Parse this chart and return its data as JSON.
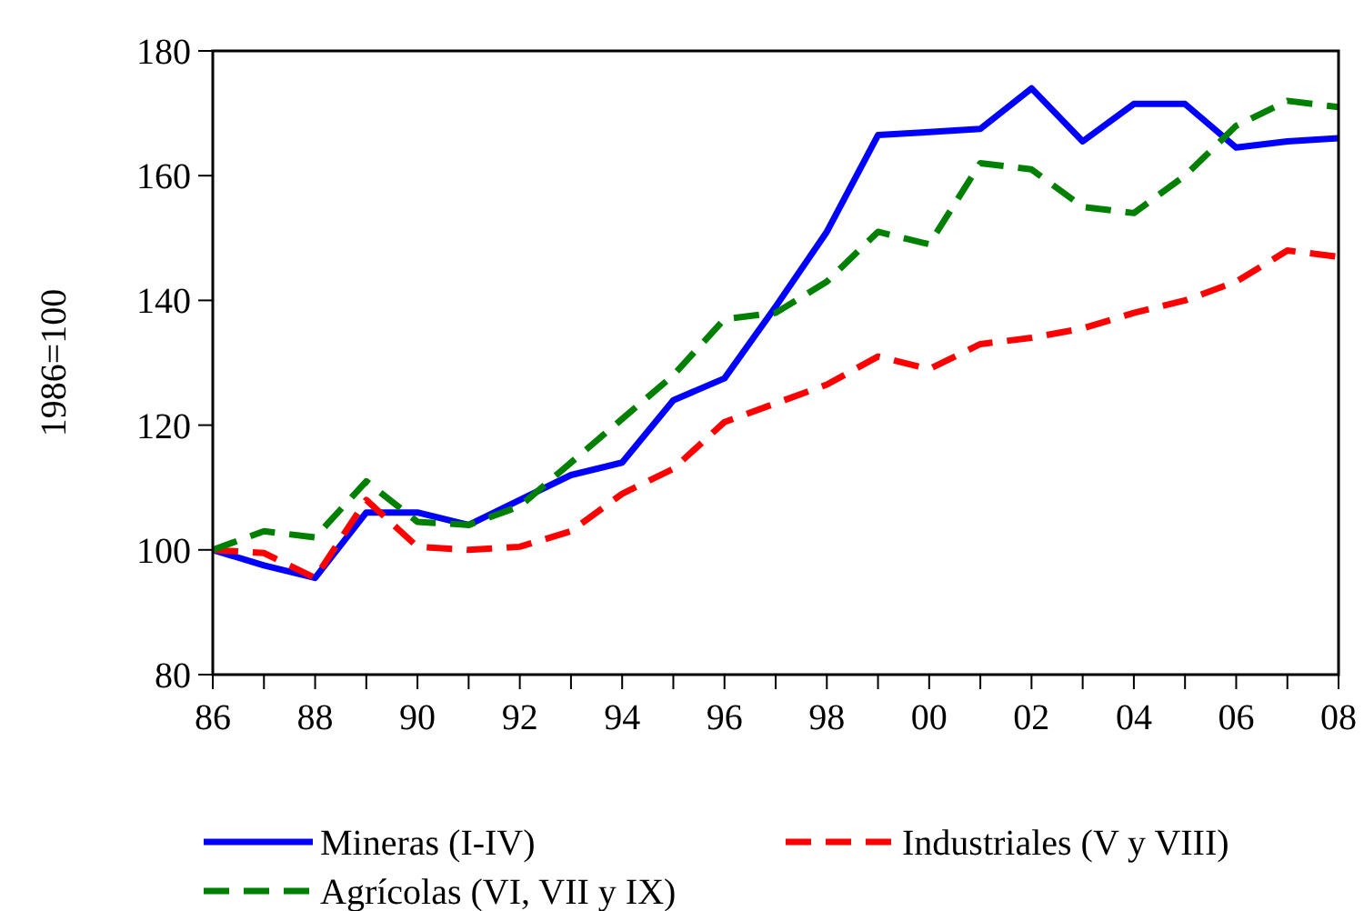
{
  "chart_data": {
    "type": "line",
    "ylabel": "1986=100",
    "x": [
      1986,
      1987,
      1988,
      1989,
      1990,
      1991,
      1992,
      1993,
      1994,
      1995,
      1996,
      1997,
      1998,
      1999,
      2000,
      2001,
      2002,
      2003,
      2004,
      2005,
      2006,
      2007,
      2008
    ],
    "xlim": [
      1986,
      2008
    ],
    "xticks": [
      {
        "value": 1986,
        "label": "86"
      },
      {
        "value": 1988,
        "label": "88"
      },
      {
        "value": 1990,
        "label": "90"
      },
      {
        "value": 1992,
        "label": "92"
      },
      {
        "value": 1994,
        "label": "94"
      },
      {
        "value": 1996,
        "label": "96"
      },
      {
        "value": 1998,
        "label": "98"
      },
      {
        "value": 2000,
        "label": "00"
      },
      {
        "value": 2002,
        "label": "02"
      },
      {
        "value": 2004,
        "label": "04"
      },
      {
        "value": 2006,
        "label": "06"
      },
      {
        "value": 2008,
        "label": "08"
      }
    ],
    "ylim": [
      80,
      180
    ],
    "yticks": [
      80,
      100,
      120,
      140,
      160,
      180
    ],
    "grid": false,
    "legend": "bottom",
    "series": [
      {
        "name": "Mineras (I-IV)",
        "color": "#0000ff",
        "line_style": "solid",
        "values": [
          100,
          97.5,
          95.5,
          106,
          106,
          104,
          108,
          112,
          114,
          124,
          127.5,
          139,
          151,
          166.5,
          167,
          167.5,
          174,
          165.5,
          171.5,
          171.5,
          164.5,
          165.5,
          166
        ]
      },
      {
        "name": "Industriales (V y VIII)",
        "color": "#ff0000",
        "line_style": "dashed",
        "values": [
          100,
          99.5,
          95.5,
          108,
          100.5,
          100,
          100.5,
          103,
          109,
          113,
          120.5,
          123.5,
          126.5,
          131,
          129,
          133,
          134,
          135.5,
          138,
          140,
          143,
          148,
          147
        ]
      },
      {
        "name": "Agrícolas (VI, VII y IX)",
        "color": "#008000",
        "line_style": "dashed",
        "values": [
          100,
          103,
          102,
          111,
          104.5,
          104,
          107,
          114,
          121,
          128,
          137,
          138,
          143,
          151,
          149,
          162,
          161,
          155,
          154,
          160,
          168,
          172,
          171
        ]
      }
    ]
  }
}
